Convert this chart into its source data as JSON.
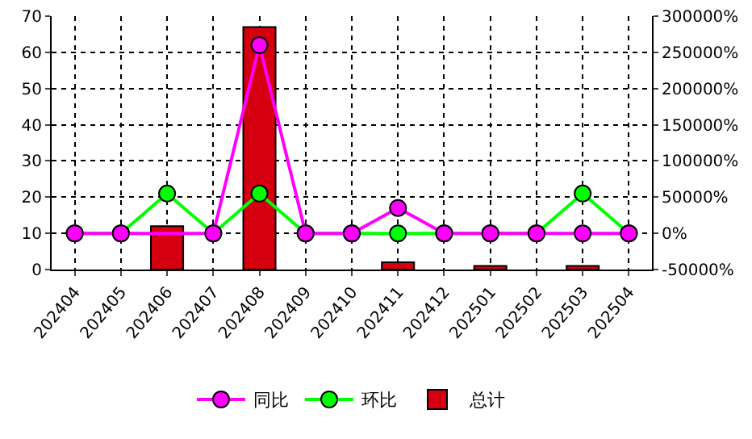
{
  "chart_data": {
    "type": "bar",
    "categories": [
      "202404",
      "202405",
      "202406",
      "202407",
      "202408",
      "202409",
      "202410",
      "202411",
      "202412",
      "202501",
      "202502",
      "202503",
      "202504"
    ],
    "series": [
      {
        "name": "同比",
        "type": "line",
        "axis": "y2",
        "color": "#ff00ff",
        "values": [
          0,
          0,
          null,
          0,
          260000,
          0,
          0,
          35000,
          0,
          0,
          0,
          0,
          0
        ]
      },
      {
        "name": "环比",
        "type": "line",
        "axis": "y2",
        "color": "#00ff00",
        "values": [
          0,
          0,
          55000,
          0,
          55000,
          0,
          0,
          0,
          0,
          0,
          0,
          55000,
          0
        ]
      },
      {
        "name": "总计",
        "color": "#d40010",
        "values": [
          null,
          null,
          12,
          null,
          67,
          null,
          null,
          2,
          null,
          1,
          null,
          1,
          null
        ]
      }
    ],
    "ylim": [
      0,
      70
    ],
    "yticks": [
      0,
      10,
      20,
      30,
      40,
      50,
      60,
      70
    ],
    "y2lim": [
      -50000,
      300000
    ],
    "y2ticks": [
      {
        "value": -50000,
        "label": "-50000%"
      },
      {
        "value": 0,
        "label": "0%"
      },
      {
        "value": 50000,
        "label": "50000%"
      },
      {
        "value": 100000,
        "label": "100000%"
      },
      {
        "value": 150000,
        "label": "150000%"
      },
      {
        "value": 200000,
        "label": "200000%"
      },
      {
        "value": 250000,
        "label": "250000%"
      },
      {
        "value": 300000,
        "label": "300000%"
      }
    ],
    "grid": true,
    "legend": "bottom",
    "marker": "circle"
  }
}
